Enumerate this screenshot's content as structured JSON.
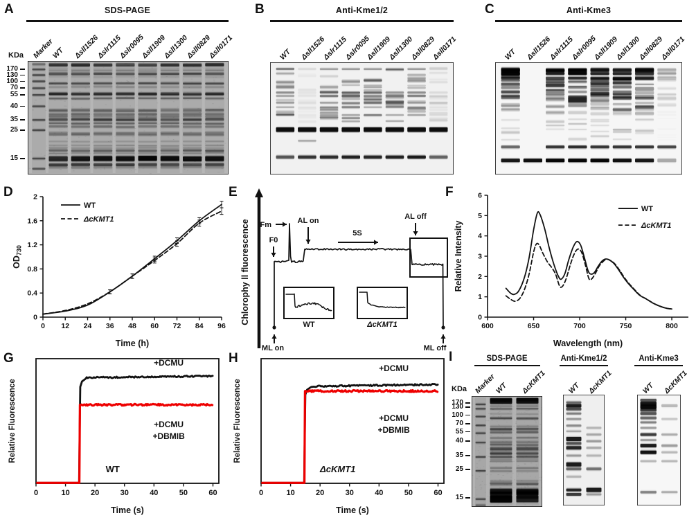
{
  "figure": {
    "background": "#ffffff",
    "accent_red": "#ee0000",
    "ink": "#111111"
  },
  "panels": {
    "A": {
      "label": "A",
      "title": "SDS-PAGE",
      "kda": "KDa",
      "markers": [
        "170",
        "130",
        "100",
        "70",
        "55",
        "40",
        "35",
        "25",
        "15"
      ],
      "lanes": [
        "Marker",
        "WT",
        "Δsll1526",
        "Δslr1115",
        "Δslr0095",
        "Δsll1909",
        "Δsll1300",
        "Δsll0829",
        "Δsll0171"
      ]
    },
    "B": {
      "label": "B",
      "title": "Anti-Kme1/2",
      "lanes": [
        "WT",
        "Δsll1526",
        "Δslr1115",
        "Δslr0095",
        "Δsll1909",
        "Δsll1300",
        "Δsll0829",
        "Δsll0171"
      ]
    },
    "C": {
      "label": "C",
      "title": "Anti-Kme3",
      "lanes": [
        "WT",
        "Δsll1526",
        "Δslr1115",
        "Δslr0095",
        "Δsll1909",
        "Δsll1300",
        "Δsll0829",
        "Δsll0171"
      ]
    },
    "D": {
      "label": "D"
    },
    "E": {
      "label": "E",
      "ylabel": "Chlorophy ll fluorescence",
      "annotations": {
        "fm": "Fm",
        "f0": "F0",
        "al_on": "AL on",
        "interval": "5S",
        "al_off": "AL off",
        "ml_on": "ML on",
        "ml_off": "ML off"
      },
      "insets": [
        {
          "name": "WT"
        },
        {
          "name": "ΔcKMT1"
        }
      ]
    },
    "F": {
      "label": "F"
    },
    "G": {
      "label": "G"
    },
    "H": {
      "label": "H"
    },
    "I": {
      "label": "I",
      "kda": "KDa",
      "markers": [
        "170",
        "130",
        "100",
        "70",
        "55",
        "40",
        "35",
        "25",
        "15"
      ],
      "blots": [
        {
          "title": "SDS-PAGE",
          "lanes": [
            "Marker",
            "WT",
            "ΔcKMT1"
          ]
        },
        {
          "title": "Anti-Kme1/2",
          "lanes": [
            "WT",
            "ΔcKMT1"
          ]
        },
        {
          "title": "Anti-Kme3",
          "lanes": [
            "WT",
            "ΔcKMT1"
          ]
        }
      ]
    }
  },
  "chart_data": [
    {
      "id": "D",
      "type": "line",
      "xlabel": "Time (h)",
      "ylabel": "OD",
      "ylabel_sub": "730",
      "x": [
        0,
        12,
        24,
        36,
        48,
        60,
        72,
        84,
        96
      ],
      "xlim": [
        0,
        96
      ],
      "ylim": [
        0,
        2
      ],
      "xticks": [
        0,
        12,
        24,
        36,
        48,
        60,
        72,
        84,
        96
      ],
      "yticks": [
        0,
        0.4,
        0.8,
        1.2,
        1.6,
        2
      ],
      "legend_position": "top-left",
      "grid": false,
      "series": [
        {
          "name": "WT",
          "style": "solid",
          "values": [
            0.05,
            0.1,
            0.2,
            0.42,
            0.68,
            0.97,
            1.27,
            1.6,
            1.87
          ]
        },
        {
          "name": "ΔcKMT1",
          "style": "dashed",
          "values": [
            0.05,
            0.11,
            0.22,
            0.42,
            0.68,
            0.94,
            1.22,
            1.56,
            1.76
          ]
        }
      ]
    },
    {
      "id": "F",
      "type": "line",
      "xlabel": "Wavelength (nm)",
      "ylabel": "Relative Intensity",
      "xlim": [
        600,
        818
      ],
      "ylim": [
        0,
        6
      ],
      "xticks": [
        600,
        650,
        700,
        750,
        800
      ],
      "yticks": [
        0,
        1,
        2,
        3,
        4,
        5,
        6
      ],
      "legend_position": "top-right",
      "grid": false,
      "series": [
        {
          "name": "WT",
          "style": "solid",
          "x": [
            620,
            625,
            629,
            634,
            640,
            645,
            650,
            654,
            657,
            662,
            667,
            672,
            677,
            680,
            684,
            688,
            693,
            697,
            701,
            705,
            709,
            712,
            716,
            720,
            724,
            728,
            732,
            737,
            742,
            747,
            752,
            758,
            765,
            772,
            780,
            788,
            794,
            800
          ],
          "y": [
            1.42,
            1.18,
            1.12,
            1.3,
            1.95,
            2.9,
            4.3,
            5.12,
            5.05,
            4.35,
            3.4,
            2.6,
            2.0,
            1.87,
            2.15,
            2.8,
            3.45,
            3.72,
            3.55,
            2.95,
            2.3,
            2.12,
            2.2,
            2.5,
            2.75,
            2.86,
            2.82,
            2.65,
            2.35,
            2.0,
            1.7,
            1.4,
            1.08,
            0.9,
            0.68,
            0.52,
            0.44,
            0.4
          ]
        },
        {
          "name": "ΔcKMT1",
          "style": "dashed",
          "x": [
            620,
            625,
            630,
            635,
            640,
            645,
            650,
            653,
            656,
            660,
            665,
            670,
            674,
            678,
            681,
            685,
            690,
            694,
            698,
            702,
            706,
            710,
            713,
            717,
            721,
            725,
            729,
            733,
            738,
            743,
            748,
            753,
            759,
            766,
            773,
            781,
            789,
            795,
            800
          ],
          "y": [
            1.05,
            0.88,
            0.78,
            0.92,
            1.35,
            2.1,
            3.2,
            3.6,
            3.55,
            3.15,
            2.72,
            2.42,
            2.1,
            1.55,
            1.5,
            1.85,
            2.6,
            3.1,
            3.35,
            3.2,
            2.6,
            1.9,
            1.88,
            2.15,
            2.5,
            2.72,
            2.85,
            2.8,
            2.63,
            2.33,
            1.98,
            1.68,
            1.38,
            1.06,
            0.88,
            0.66,
            0.51,
            0.43,
            0.4
          ]
        }
      ]
    },
    {
      "id": "G",
      "type": "line",
      "strain": "WT",
      "xlabel": "Time (s)",
      "ylabel": "Relative Fluorescence",
      "xlim": [
        0,
        62
      ],
      "ylim": [
        0,
        1
      ],
      "xticks": [
        0,
        10,
        20,
        30,
        40,
        50,
        60
      ],
      "jump_time": 15,
      "series": [
        {
          "name": "+DCMU",
          "color": "#111111",
          "plateau": 0.86
        },
        {
          "name": "+DCMU +DBMIB",
          "color": "#ee0000",
          "plateau": 0.63
        }
      ],
      "labels": {
        "dcmu": "+DCMU",
        "dbmib_line1": "+DCMU",
        "dbmib_line2": "+DBMIB"
      }
    },
    {
      "id": "H",
      "type": "line",
      "strain": "ΔcKMT1",
      "xlabel": "Time (s)",
      "ylabel": "Relative Fluorescence",
      "xlim": [
        0,
        62
      ],
      "ylim": [
        0,
        1
      ],
      "xticks": [
        0,
        10,
        20,
        30,
        40,
        50,
        60
      ],
      "jump_time": 15,
      "series": [
        {
          "name": "+DCMU",
          "color": "#111111",
          "plateau": 0.79
        },
        {
          "name": "+DCMU +DBMIB",
          "color": "#ee0000",
          "plateau": 0.74
        }
      ],
      "labels": {
        "dcmu": "+DCMU",
        "dbmib_line1": "+DCMU",
        "dbmib_line2": "+DBMIB"
      }
    },
    {
      "id": "E",
      "type": "line",
      "subtype": "schematic-fluorescence-trace",
      "ylabel": "Chlorophy ll fluorescence",
      "events": [
        "ML on",
        "F0",
        "Fm",
        "AL on",
        "5S",
        "AL off",
        "ML off"
      ],
      "insets": [
        "WT",
        "ΔcKMT1"
      ]
    }
  ]
}
